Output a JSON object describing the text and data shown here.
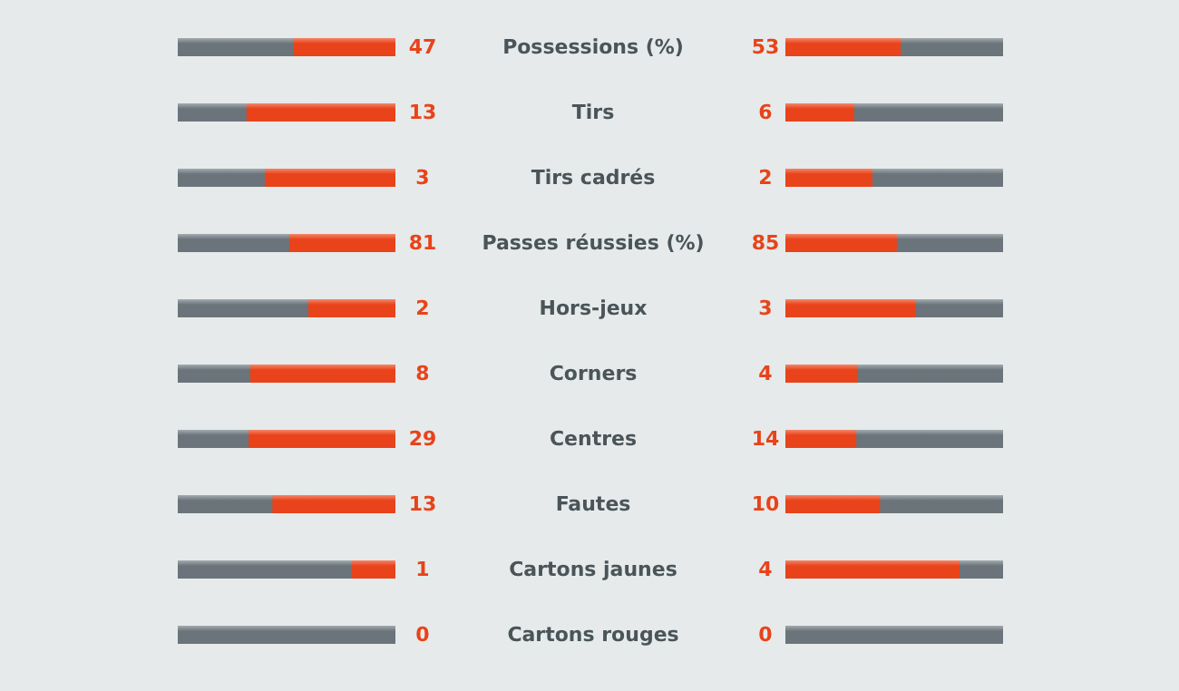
{
  "chart_data": {
    "type": "other",
    "categories": [
      "Possessions (%)",
      "Tirs",
      "Tirs cadrés",
      "Passes réussies (%)",
      "Hors-jeux",
      "Corners",
      "Centres",
      "Fautes",
      "Cartons jaunes",
      "Cartons rouges"
    ],
    "series": [
      {
        "color": "#e8431a",
        "values": [
          47,
          13,
          3,
          81,
          2,
          8,
          29,
          13,
          1,
          0
        ]
      },
      {
        "color": "#e8431a",
        "values": [
          53,
          6,
          2,
          85,
          3,
          4,
          14,
          10,
          4,
          0
        ]
      }
    ],
    "data_labels": true
  }
}
